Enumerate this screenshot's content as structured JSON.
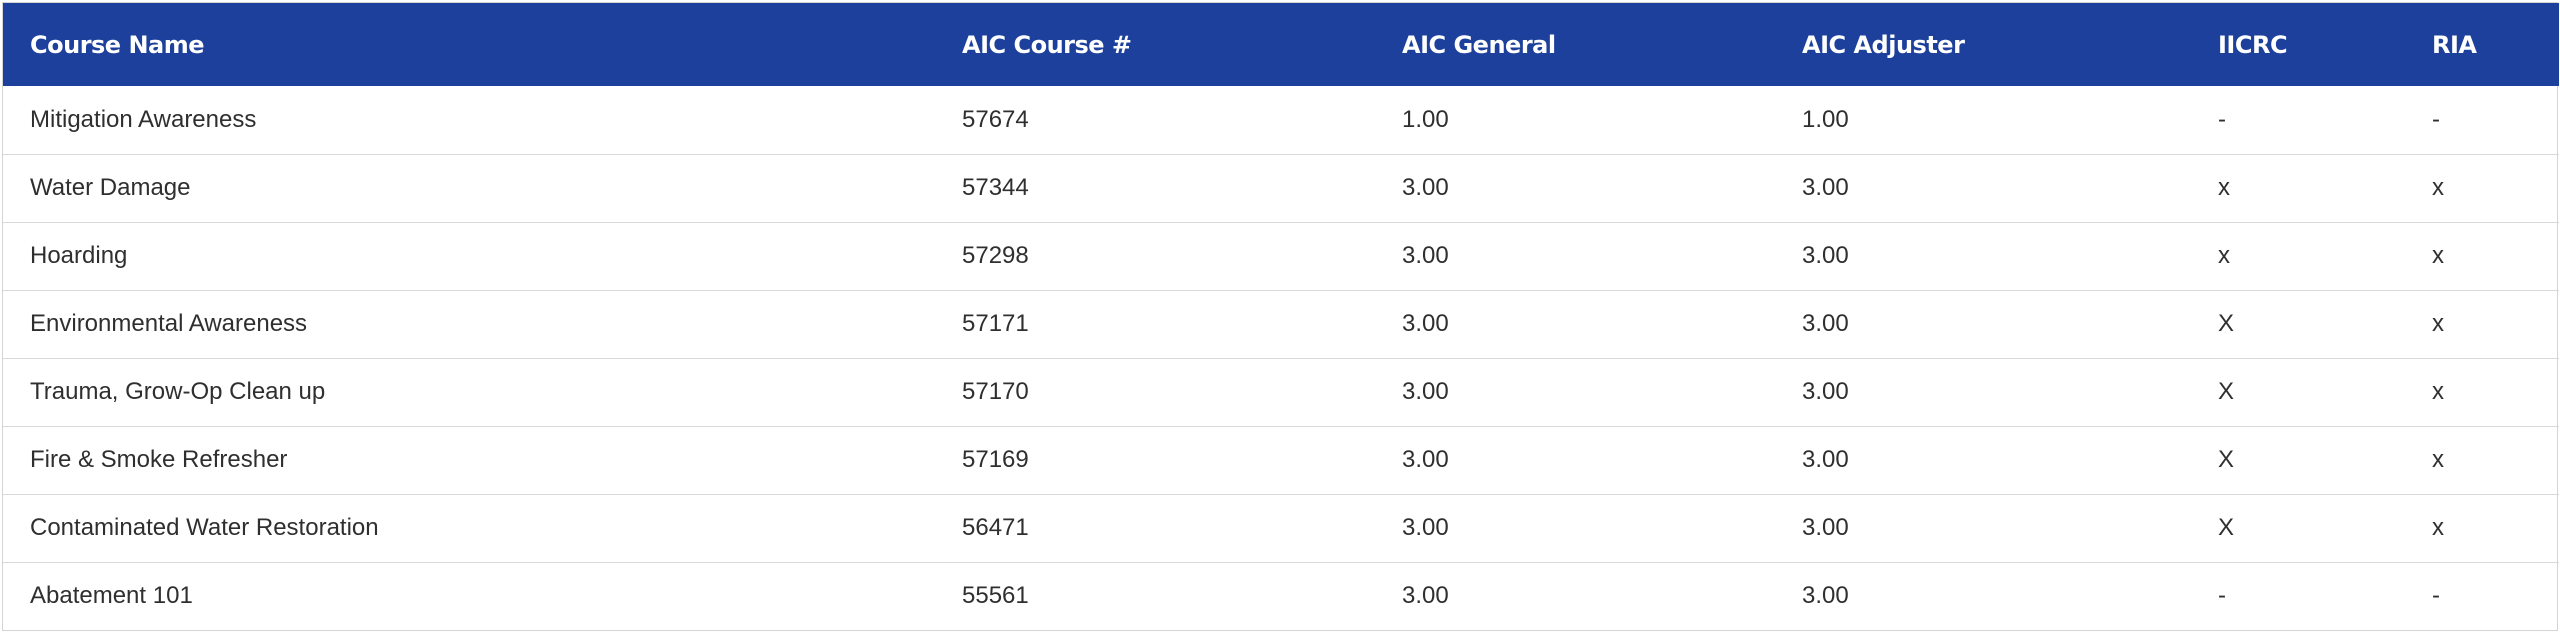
{
  "table": {
    "headers": [
      "Course Name",
      "AIC Course #",
      "AIC General",
      "AIC Adjuster",
      "IICRC",
      "RIA"
    ],
    "rows": [
      [
        "Mitigation Awareness",
        "57674",
        "1.00",
        "1.00",
        "-",
        "-"
      ],
      [
        "Water Damage",
        "57344",
        "3.00",
        "3.00",
        "x",
        "x"
      ],
      [
        "Hoarding",
        "57298",
        "3.00",
        "3.00",
        "x",
        "x"
      ],
      [
        "Environmental Awareness",
        "57171",
        "3.00",
        "3.00",
        "X",
        "x"
      ],
      [
        "Trauma, Grow-Op Clean up",
        "57170",
        "3.00",
        "3.00",
        "X",
        "x"
      ],
      [
        "Fire & Smoke Refresher",
        "57169",
        "3.00",
        "3.00",
        "X",
        "x"
      ],
      [
        "Contaminated Water Restoration",
        "56471",
        "3.00",
        "3.00",
        "X",
        "x"
      ],
      [
        "Abatement 101",
        "55561",
        "3.00",
        "3.00",
        "-",
        "-"
      ]
    ]
  },
  "colors": {
    "header_background": "#1c409b",
    "header_text": "#ffffff",
    "row_divider": "#d9d9d9"
  }
}
